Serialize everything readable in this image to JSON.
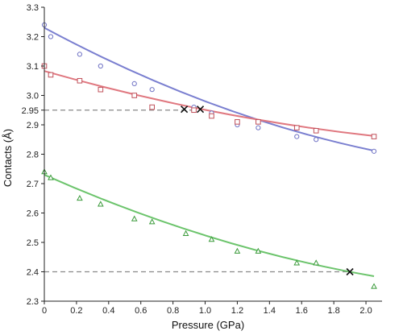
{
  "chart_data": {
    "type": "scatter",
    "xlabel": "Pressure (GPa)",
    "ylabel": "Contacts (Å)",
    "xlim": [
      0,
      2.1
    ],
    "ylim": [
      2.3,
      3.3
    ],
    "x_ticks": [
      "0",
      "0.2",
      "0.4",
      "0.6",
      "0.8",
      "1.0",
      "1.2",
      "1.4",
      "1.6",
      "1.8",
      "2.0"
    ],
    "y_ticks": [
      "2.3",
      "2.4",
      "2.5",
      "2.6",
      "2.7",
      "2.8",
      "2.9",
      "2.95",
      "3.0",
      "3.1",
      "3.2",
      "3.3"
    ],
    "grid": false,
    "series": [
      {
        "marker": "circle",
        "color": "#6f72c4",
        "fit_color": "#7a7fd0",
        "x": [
          0.0,
          0.04,
          0.22,
          0.35,
          0.56,
          0.67,
          0.93,
          1.04,
          1.2,
          1.33,
          1.57,
          1.69,
          2.05
        ],
        "y": [
          3.24,
          3.2,
          3.14,
          3.1,
          3.04,
          3.02,
          2.96,
          2.94,
          2.9,
          2.89,
          2.86,
          2.85,
          2.81
        ],
        "fit": [
          3.23,
          2.812
        ]
      },
      {
        "marker": "square",
        "color": "#c0505a",
        "fit_color": "#e07880",
        "x": [
          0.0,
          0.04,
          0.22,
          0.35,
          0.56,
          0.67,
          0.93,
          1.04,
          1.2,
          1.33,
          1.57,
          1.69,
          2.05
        ],
        "y": [
          3.1,
          3.07,
          3.05,
          3.02,
          3.0,
          2.96,
          2.95,
          2.93,
          2.91,
          2.91,
          2.89,
          2.88,
          2.86
        ],
        "fit": [
          3.083,
          2.862
        ]
      },
      {
        "marker": "triangle",
        "color": "#3a9a3a",
        "fit_color": "#6cc46c",
        "x": [
          0.0,
          0.04,
          0.22,
          0.35,
          0.56,
          0.67,
          0.88,
          1.04,
          1.2,
          1.33,
          1.57,
          1.69,
          2.05
        ],
        "y": [
          2.74,
          2.72,
          2.65,
          2.63,
          2.58,
          2.57,
          2.53,
          2.51,
          2.47,
          2.47,
          2.43,
          2.43,
          2.35
        ],
        "fit": [
          2.73,
          2.385
        ]
      }
    ],
    "reference_lines": [
      {
        "y": 2.95,
        "x_end": 0.92
      },
      {
        "y": 2.4,
        "x_end": 1.9
      }
    ],
    "markers_x": [
      {
        "x": 0.87,
        "y": 2.953
      },
      {
        "x": 0.97,
        "y": 2.953
      },
      {
        "x": 1.9,
        "y": 2.4
      }
    ]
  }
}
